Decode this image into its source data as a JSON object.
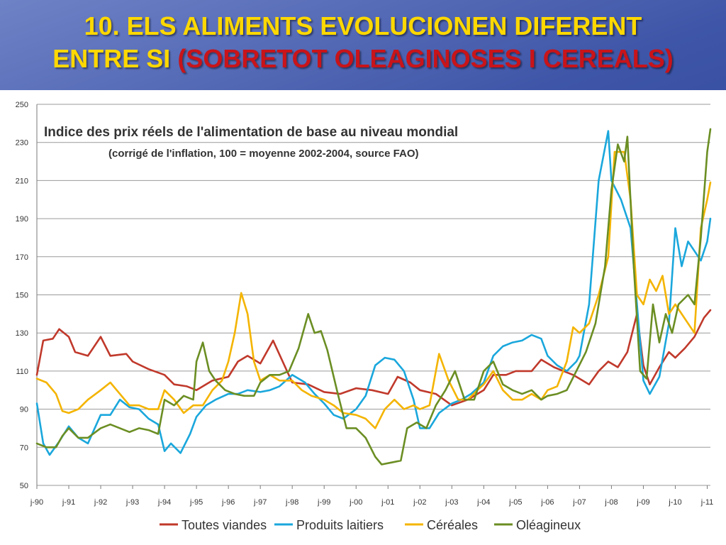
{
  "slide": {
    "title_line1": "10. ELS ALIMENTS EVOLUCIONEN DIFERENT",
    "title_line2_a": "ENTRE SI ",
    "title_line2_b": "(SOBRETOT OLEAGINOSES I CEREALS)",
    "colors": {
      "title_yellow": "#ffd800",
      "title_red": "#c8141a",
      "background": "#3f56a8"
    }
  },
  "chart_data": {
    "type": "line",
    "title": "Indice des prix réels de l'alimentation de base au niveau mondial",
    "subtitle": "(corrigé de l'inflation, 100 = moyenne 2002-2004, source FAO)",
    "xlabel": "",
    "ylabel": "",
    "ylim": [
      50,
      250
    ],
    "yticks": [
      50,
      70,
      90,
      110,
      130,
      150,
      170,
      190,
      210,
      230,
      250
    ],
    "xlim": [
      1990.0,
      2011.1
    ],
    "xtick_labels": [
      "j-90",
      "j-91",
      "j-92",
      "j-93",
      "j-94",
      "j-95",
      "j-96",
      "j-97",
      "j-98",
      "j-99",
      "j-00",
      "j-01",
      "j-02",
      "j-03",
      "j-04",
      "j-05",
      "j-06",
      "j-07",
      "j-08",
      "j-09",
      "j-10",
      "j-11"
    ],
    "grid": true,
    "legend_position": "bottom",
    "series": [
      {
        "name": "Toutes viandes",
        "color": "#c0392b",
        "points": [
          [
            1990.0,
            108
          ],
          [
            1990.2,
            126
          ],
          [
            1990.5,
            127
          ],
          [
            1990.7,
            132
          ],
          [
            1991.0,
            128
          ],
          [
            1991.2,
            120
          ],
          [
            1991.6,
            118
          ],
          [
            1992.0,
            128
          ],
          [
            1992.3,
            118
          ],
          [
            1992.8,
            119
          ],
          [
            1993.0,
            115
          ],
          [
            1993.5,
            111
          ],
          [
            1994.0,
            108
          ],
          [
            1994.3,
            103
          ],
          [
            1994.7,
            102
          ],
          [
            1995.0,
            100
          ],
          [
            1995.5,
            105
          ],
          [
            1996.0,
            107
          ],
          [
            1996.3,
            115
          ],
          [
            1996.6,
            118
          ],
          [
            1997.0,
            114
          ],
          [
            1997.4,
            126
          ],
          [
            1997.7,
            115
          ],
          [
            1998.0,
            104
          ],
          [
            1998.5,
            103
          ],
          [
            1999.0,
            99
          ],
          [
            1999.5,
            98
          ],
          [
            2000.0,
            101
          ],
          [
            2000.5,
            100
          ],
          [
            2001.0,
            98
          ],
          [
            2001.3,
            107
          ],
          [
            2001.7,
            104
          ],
          [
            2002.0,
            100
          ],
          [
            2002.5,
            98
          ],
          [
            2003.0,
            92
          ],
          [
            2003.5,
            95
          ],
          [
            2004.0,
            100
          ],
          [
            2004.3,
            108
          ],
          [
            2004.7,
            108
          ],
          [
            2005.0,
            110
          ],
          [
            2005.5,
            110
          ],
          [
            2005.8,
            116
          ],
          [
            2006.2,
            112
          ],
          [
            2006.5,
            110
          ],
          [
            2006.8,
            108
          ],
          [
            2007.0,
            106
          ],
          [
            2007.3,
            103
          ],
          [
            2007.6,
            110
          ],
          [
            2007.9,
            115
          ],
          [
            2008.2,
            112
          ],
          [
            2008.5,
            120
          ],
          [
            2008.8,
            140
          ],
          [
            2009.0,
            113
          ],
          [
            2009.2,
            103
          ],
          [
            2009.5,
            112
          ],
          [
            2009.8,
            120
          ],
          [
            2010.0,
            117
          ],
          [
            2010.3,
            122
          ],
          [
            2010.6,
            128
          ],
          [
            2010.9,
            138
          ],
          [
            2011.1,
            142
          ]
        ]
      },
      {
        "name": "Produits laitiers",
        "color": "#1aa7dc",
        "points": [
          [
            1990.0,
            93
          ],
          [
            1990.2,
            72
          ],
          [
            1990.4,
            66
          ],
          [
            1990.7,
            73
          ],
          [
            1991.0,
            81
          ],
          [
            1991.3,
            75
          ],
          [
            1991.6,
            72
          ],
          [
            1992.0,
            87
          ],
          [
            1992.3,
            87
          ],
          [
            1992.6,
            95
          ],
          [
            1992.9,
            91
          ],
          [
            1993.2,
            90
          ],
          [
            1993.5,
            85
          ],
          [
            1993.8,
            82
          ],
          [
            1994.0,
            68
          ],
          [
            1994.2,
            72
          ],
          [
            1994.5,
            67
          ],
          [
            1994.8,
            77
          ],
          [
            1995.0,
            86
          ],
          [
            1995.3,
            92
          ],
          [
            1995.6,
            95
          ],
          [
            1996.0,
            98
          ],
          [
            1996.3,
            98
          ],
          [
            1996.6,
            100
          ],
          [
            1997.0,
            99
          ],
          [
            1997.3,
            100
          ],
          [
            1997.6,
            102
          ],
          [
            1998.0,
            108
          ],
          [
            1998.4,
            104
          ],
          [
            1998.7,
            98
          ],
          [
            1999.0,
            93
          ],
          [
            1999.3,
            87
          ],
          [
            1999.6,
            85
          ],
          [
            2000.0,
            90
          ],
          [
            2000.3,
            97
          ],
          [
            2000.6,
            113
          ],
          [
            2000.9,
            117
          ],
          [
            2001.2,
            116
          ],
          [
            2001.5,
            110
          ],
          [
            2001.8,
            95
          ],
          [
            2002.0,
            80
          ],
          [
            2002.3,
            80
          ],
          [
            2002.6,
            88
          ],
          [
            2003.0,
            93
          ],
          [
            2003.3,
            95
          ],
          [
            2003.6,
            98
          ],
          [
            2004.0,
            104
          ],
          [
            2004.3,
            118
          ],
          [
            2004.6,
            123
          ],
          [
            2004.9,
            125
          ],
          [
            2005.2,
            126
          ],
          [
            2005.5,
            129
          ],
          [
            2005.8,
            127
          ],
          [
            2006.0,
            118
          ],
          [
            2006.3,
            113
          ],
          [
            2006.6,
            110
          ],
          [
            2006.9,
            115
          ],
          [
            2007.0,
            118
          ],
          [
            2007.3,
            145
          ],
          [
            2007.6,
            210
          ],
          [
            2007.9,
            236
          ],
          [
            2008.0,
            210
          ],
          [
            2008.3,
            200
          ],
          [
            2008.6,
            185
          ],
          [
            2008.8,
            145
          ],
          [
            2009.0,
            105
          ],
          [
            2009.2,
            98
          ],
          [
            2009.5,
            107
          ],
          [
            2009.8,
            135
          ],
          [
            2010.0,
            185
          ],
          [
            2010.2,
            165
          ],
          [
            2010.4,
            178
          ],
          [
            2010.6,
            173
          ],
          [
            2010.8,
            168
          ],
          [
            2011.0,
            178
          ],
          [
            2011.1,
            190
          ]
        ]
      },
      {
        "name": "Céréales",
        "color": "#f4b400",
        "points": [
          [
            1990.0,
            106
          ],
          [
            1990.3,
            104
          ],
          [
            1990.6,
            98
          ],
          [
            1990.8,
            89
          ],
          [
            1991.0,
            88
          ],
          [
            1991.3,
            90
          ],
          [
            1991.6,
            95
          ],
          [
            1992.0,
            100
          ],
          [
            1992.3,
            104
          ],
          [
            1992.6,
            98
          ],
          [
            1992.9,
            92
          ],
          [
            1993.2,
            92
          ],
          [
            1993.5,
            90
          ],
          [
            1993.8,
            90
          ],
          [
            1994.0,
            100
          ],
          [
            1994.3,
            95
          ],
          [
            1994.6,
            88
          ],
          [
            1994.9,
            92
          ],
          [
            1995.2,
            92
          ],
          [
            1995.5,
            100
          ],
          [
            1995.8,
            105
          ],
          [
            1996.0,
            115
          ],
          [
            1996.2,
            130
          ],
          [
            1996.4,
            151
          ],
          [
            1996.6,
            140
          ],
          [
            1996.8,
            115
          ],
          [
            1997.0,
            105
          ],
          [
            1997.3,
            108
          ],
          [
            1997.6,
            105
          ],
          [
            1998.0,
            105
          ],
          [
            1998.3,
            100
          ],
          [
            1998.6,
            97
          ],
          [
            1999.0,
            95
          ],
          [
            1999.3,
            92
          ],
          [
            1999.6,
            88
          ],
          [
            2000.0,
            87
          ],
          [
            2000.3,
            85
          ],
          [
            2000.6,
            80
          ],
          [
            2000.9,
            90
          ],
          [
            2001.2,
            95
          ],
          [
            2001.5,
            90
          ],
          [
            2001.8,
            92
          ],
          [
            2002.0,
            90
          ],
          [
            2002.3,
            92
          ],
          [
            2002.6,
            119
          ],
          [
            2002.9,
            105
          ],
          [
            2003.2,
            95
          ],
          [
            2003.5,
            95
          ],
          [
            2003.8,
            100
          ],
          [
            2004.0,
            103
          ],
          [
            2004.3,
            110
          ],
          [
            2004.6,
            100
          ],
          [
            2004.9,
            95
          ],
          [
            2005.2,
            95
          ],
          [
            2005.5,
            98
          ],
          [
            2005.8,
            95
          ],
          [
            2006.0,
            100
          ],
          [
            2006.3,
            102
          ],
          [
            2006.6,
            115
          ],
          [
            2006.8,
            133
          ],
          [
            2007.0,
            130
          ],
          [
            2007.3,
            135
          ],
          [
            2007.6,
            150
          ],
          [
            2007.9,
            170
          ],
          [
            2008.1,
            225
          ],
          [
            2008.4,
            225
          ],
          [
            2008.6,
            200
          ],
          [
            2008.8,
            150
          ],
          [
            2009.0,
            145
          ],
          [
            2009.2,
            158
          ],
          [
            2009.4,
            152
          ],
          [
            2009.6,
            160
          ],
          [
            2009.8,
            140
          ],
          [
            2010.0,
            145
          ],
          [
            2010.2,
            140
          ],
          [
            2010.4,
            135
          ],
          [
            2010.6,
            130
          ],
          [
            2010.8,
            185
          ],
          [
            2011.0,
            200
          ],
          [
            2011.1,
            209
          ]
        ]
      },
      {
        "name": "Oléagineux",
        "color": "#6b8e23",
        "points": [
          [
            1990.0,
            72
          ],
          [
            1990.3,
            70
          ],
          [
            1990.6,
            70
          ],
          [
            1990.8,
            76
          ],
          [
            1991.0,
            80
          ],
          [
            1991.3,
            75
          ],
          [
            1991.6,
            75
          ],
          [
            1992.0,
            80
          ],
          [
            1992.3,
            82
          ],
          [
            1992.6,
            80
          ],
          [
            1992.9,
            78
          ],
          [
            1993.2,
            80
          ],
          [
            1993.5,
            79
          ],
          [
            1993.8,
            77
          ],
          [
            1994.0,
            95
          ],
          [
            1994.3,
            92
          ],
          [
            1994.6,
            97
          ],
          [
            1994.9,
            95
          ],
          [
            1995.0,
            115
          ],
          [
            1995.2,
            125
          ],
          [
            1995.4,
            110
          ],
          [
            1995.6,
            105
          ],
          [
            1995.9,
            100
          ],
          [
            1996.2,
            98
          ],
          [
            1996.5,
            97
          ],
          [
            1996.8,
            97
          ],
          [
            1997.0,
            104
          ],
          [
            1997.3,
            108
          ],
          [
            1997.6,
            108
          ],
          [
            1997.9,
            110
          ],
          [
            1998.2,
            122
          ],
          [
            1998.5,
            140
          ],
          [
            1998.7,
            130
          ],
          [
            1998.9,
            131
          ],
          [
            1999.1,
            121
          ],
          [
            1999.4,
            100
          ],
          [
            1999.7,
            80
          ],
          [
            2000.0,
            80
          ],
          [
            2000.3,
            75
          ],
          [
            2000.6,
            65
          ],
          [
            2000.8,
            61
          ],
          [
            2001.1,
            62
          ],
          [
            2001.4,
            63
          ],
          [
            2001.6,
            80
          ],
          [
            2001.9,
            83
          ],
          [
            2002.2,
            80
          ],
          [
            2002.5,
            92
          ],
          [
            2002.8,
            100
          ],
          [
            2003.1,
            110
          ],
          [
            2003.4,
            95
          ],
          [
            2003.7,
            95
          ],
          [
            2004.0,
            110
          ],
          [
            2004.3,
            115
          ],
          [
            2004.6,
            103
          ],
          [
            2004.9,
            100
          ],
          [
            2005.2,
            98
          ],
          [
            2005.5,
            100
          ],
          [
            2005.8,
            95
          ],
          [
            2006.0,
            97
          ],
          [
            2006.3,
            98
          ],
          [
            2006.6,
            100
          ],
          [
            2006.9,
            110
          ],
          [
            2007.2,
            120
          ],
          [
            2007.5,
            135
          ],
          [
            2007.8,
            165
          ],
          [
            2008.0,
            205
          ],
          [
            2008.2,
            229
          ],
          [
            2008.4,
            220
          ],
          [
            2008.5,
            233
          ],
          [
            2008.7,
            165
          ],
          [
            2008.9,
            110
          ],
          [
            2009.1,
            106
          ],
          [
            2009.3,
            145
          ],
          [
            2009.5,
            125
          ],
          [
            2009.7,
            140
          ],
          [
            2009.9,
            130
          ],
          [
            2010.1,
            145
          ],
          [
            2010.4,
            150
          ],
          [
            2010.6,
            145
          ],
          [
            2010.8,
            180
          ],
          [
            2011.0,
            225
          ],
          [
            2011.1,
            237
          ]
        ]
      }
    ]
  }
}
